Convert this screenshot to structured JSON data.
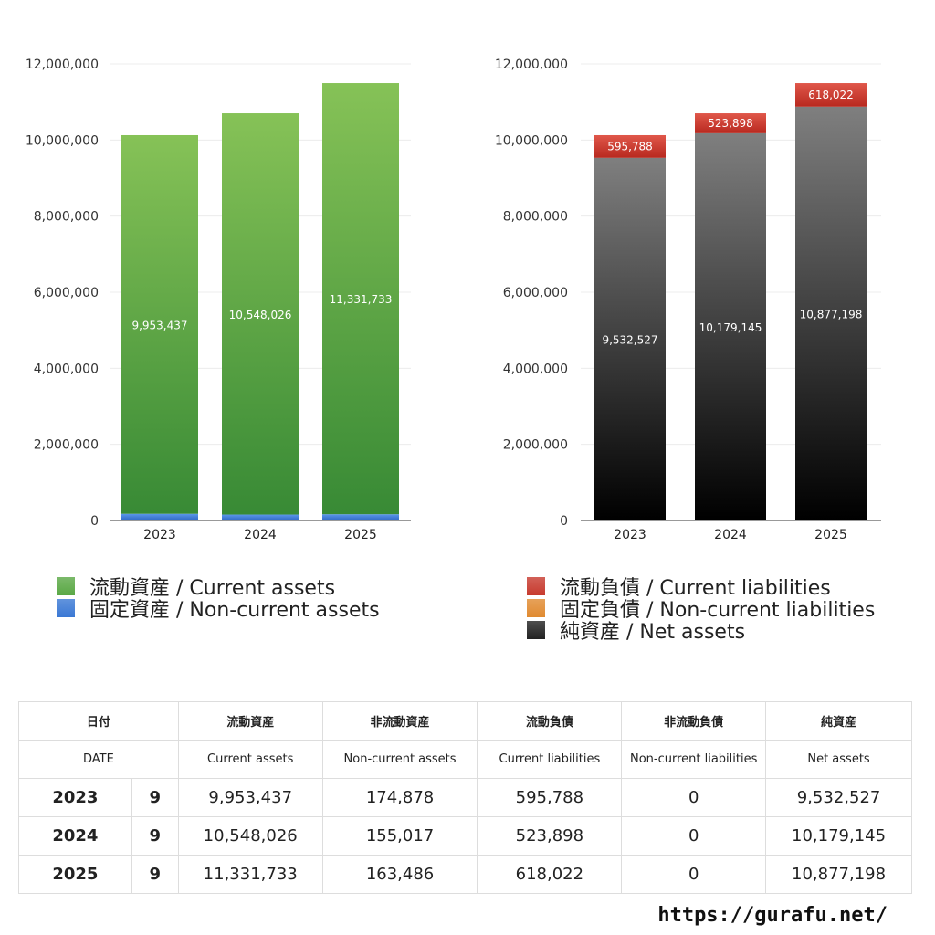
{
  "chart_data": [
    {
      "type": "bar",
      "stacked": true,
      "categories": [
        "2023",
        "2024",
        "2025"
      ],
      "ylim": [
        0,
        12000000
      ],
      "yticks": [
        "0",
        "2,000,000",
        "4,000,000",
        "6,000,000",
        "8,000,000",
        "10,000,000",
        "12,000,000"
      ],
      "grid": true,
      "series": [
        {
          "name": "固定資産 / Non-current assets",
          "values": [
            174878,
            155017,
            163486
          ],
          "labels": [
            "174,878",
            "155,017",
            "163,486"
          ],
          "color": "#3a78d4"
        },
        {
          "name": "流動資産 / Current assets",
          "values": [
            9953437,
            10548026,
            11331733
          ],
          "labels": [
            "9,953,437",
            "10,548,026",
            "11,331,733"
          ],
          "color": "#5aa845"
        }
      ],
      "legend": [
        "流動資産 / Current assets",
        "固定資産 / Non-current assets"
      ],
      "legend_placement": "bottom"
    },
    {
      "type": "bar",
      "stacked": true,
      "categories": [
        "2023",
        "2024",
        "2025"
      ],
      "ylim": [
        0,
        12000000
      ],
      "yticks": [
        "0",
        "2,000,000",
        "4,000,000",
        "6,000,000",
        "8,000,000",
        "10,000,000",
        "12,000,000"
      ],
      "grid": true,
      "series": [
        {
          "name": "純資産 / Net assets",
          "values": [
            9532527,
            10179145,
            10877198
          ],
          "labels": [
            "9,532,527",
            "10,179,145",
            "10,877,198"
          ],
          "color": "#222222"
        },
        {
          "name": "固定負債 / Non-current liabilities",
          "values": [
            0,
            0,
            0
          ],
          "labels": [
            "",
            "",
            ""
          ],
          "color": "#e08a30"
        },
        {
          "name": "流動負債 / Current liabilities",
          "values": [
            595788,
            523898,
            618022
          ],
          "labels": [
            "595,788",
            "523,898",
            "618,022"
          ],
          "color": "#c73a2e"
        }
      ],
      "legend": [
        "流動負債 / Current liabilities",
        "固定負債 / Non-current liabilities",
        "純資産 / Net assets"
      ],
      "legend_placement": "bottom"
    }
  ],
  "legend_left": [
    {
      "label": "流動資産 / Current assets",
      "color": "#5aa845"
    },
    {
      "label": "固定資産 / Non-current assets",
      "color": "#3a78d4"
    }
  ],
  "legend_right": [
    {
      "label": "流動負債 / Current liabilities",
      "color": "#c73a2e"
    },
    {
      "label": "固定負債 / Non-current liabilities",
      "color": "#e08a30"
    },
    {
      "label": "純資産 / Net assets",
      "color": "#222222"
    }
  ],
  "table": {
    "header_jp": [
      "日付",
      "流動資産",
      "非流動資産",
      "流動負債",
      "非流動負債",
      "純資産"
    ],
    "header_en": [
      "DATE",
      "Current assets",
      "Non-current assets",
      "Current liabilities",
      "Non-current liabilities",
      "Net assets"
    ],
    "rows": [
      {
        "year": "2023",
        "month": "9",
        "cells": [
          "9,953,437",
          "174,878",
          "595,788",
          "0",
          "9,532,527"
        ]
      },
      {
        "year": "2024",
        "month": "9",
        "cells": [
          "10,548,026",
          "155,017",
          "523,898",
          "0",
          "10,179,145"
        ]
      },
      {
        "year": "2025",
        "month": "9",
        "cells": [
          "11,331,733",
          "163,486",
          "618,022",
          "0",
          "10,877,198"
        ]
      }
    ]
  },
  "site_url": "https://gurafu.net/"
}
